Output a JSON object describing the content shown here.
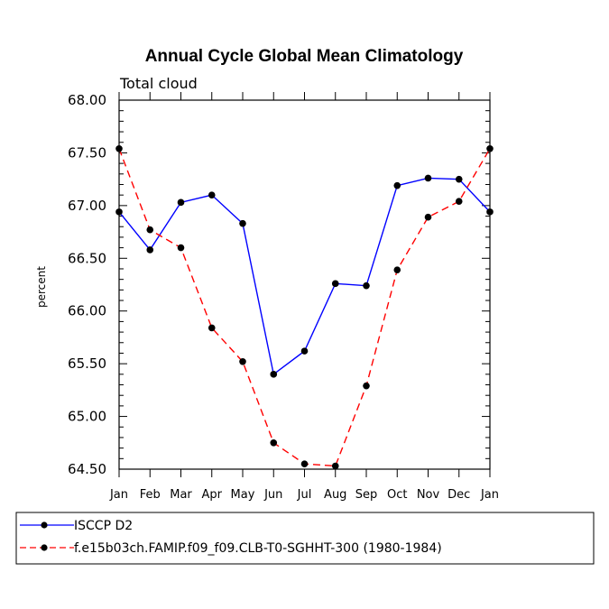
{
  "chart_data": {
    "type": "line",
    "title": "Annual Cycle Global Mean Climatology",
    "subtitle": "Total cloud",
    "ylabel": "percent",
    "xlabel": "",
    "categories": [
      "Jan",
      "Feb",
      "Mar",
      "Apr",
      "May",
      "Jun",
      "Jul",
      "Aug",
      "Sep",
      "Oct",
      "Nov",
      "Dec",
      "Jan"
    ],
    "ylim": [
      64.5,
      68.0
    ],
    "yticks": [
      "64.50",
      "65.00",
      "65.50",
      "66.00",
      "66.50",
      "67.00",
      "67.50",
      "68.00"
    ],
    "grid": false,
    "legend_position": "bottom",
    "series": [
      {
        "name": "ISCCP D2",
        "color": "#0000ff",
        "dash": "solid",
        "values": [
          66.94,
          66.58,
          67.03,
          67.1,
          66.83,
          65.4,
          65.62,
          66.26,
          66.24,
          67.19,
          67.26,
          67.25,
          66.94
        ]
      },
      {
        "name": "f.e15b03ch.FAMIP.f09_f09.CLB-T0-SGHHT-300 (1980-1984)",
        "color": "#ff0000",
        "dash": "dashed",
        "values": [
          67.54,
          66.77,
          66.6,
          65.84,
          65.52,
          64.75,
          64.55,
          64.53,
          65.29,
          66.39,
          66.89,
          67.04,
          67.54
        ]
      }
    ]
  }
}
